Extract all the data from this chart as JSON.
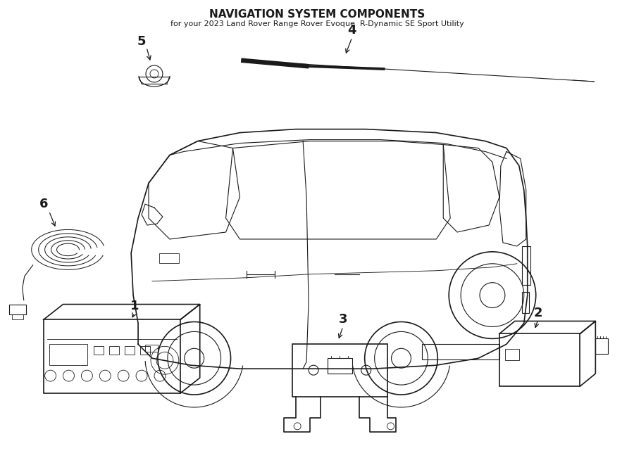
{
  "title": "NAVIGATION SYSTEM COMPONENTS",
  "subtitle": "for your 2023 Land Rover Range Rover Evoque  R-Dynamic SE Sport Utility",
  "bg_color": "#ffffff",
  "line_color": "#1a1a1a",
  "fig_width": 9.0,
  "fig_height": 6.61,
  "dpi": 100
}
